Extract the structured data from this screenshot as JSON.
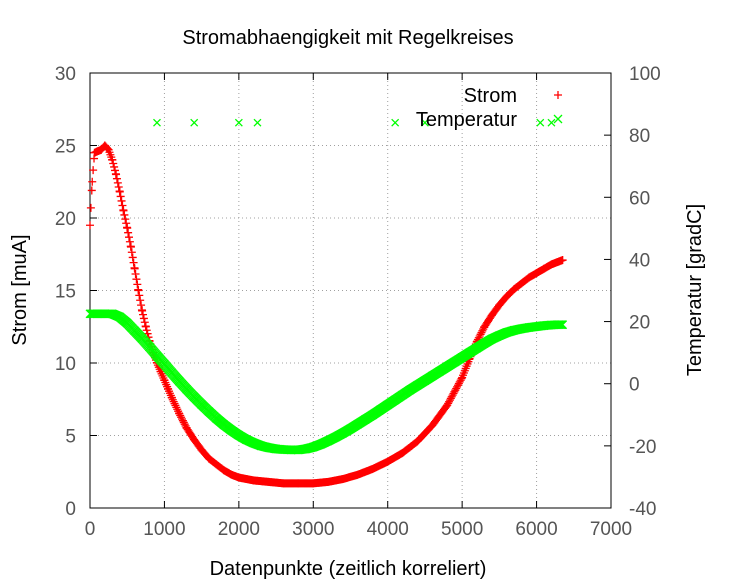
{
  "chart_data": {
    "type": "scatter",
    "title": "Stromabhaengigkeit mit Regelkreises",
    "xlabel": "Datenpunkte (zeitlich korreliert)",
    "ylabel": "Strom [muA]",
    "y2label": "Temperatur [gradC]",
    "xlim": [
      0,
      7000
    ],
    "ylim": [
      0,
      30
    ],
    "y2lim": [
      -40,
      100
    ],
    "xticks": [
      "0",
      "1000",
      "2000",
      "3000",
      "4000",
      "5000",
      "6000",
      "7000"
    ],
    "yticks": [
      "0",
      "5",
      "10",
      "15",
      "20",
      "25",
      "30"
    ],
    "y2ticks": [
      "-40",
      "-20",
      "0",
      "20",
      "40",
      "60",
      "80",
      "100"
    ],
    "grid": true,
    "legend_position": "top-right",
    "series": [
      {
        "name": "Strom",
        "axis": "left",
        "marker": "plus",
        "color": "#ff0000",
        "x": [
          0,
          30,
          60,
          100,
          150,
          200,
          250,
          300,
          350,
          400,
          450,
          500,
          550,
          600,
          650,
          700,
          750,
          800,
          850,
          900,
          950,
          1000,
          1050,
          1100,
          1200,
          1300,
          1400,
          1500,
          1600,
          1700,
          1800,
          1900,
          2000,
          2100,
          2200,
          2400,
          2600,
          2800,
          3000,
          3200,
          3400,
          3600,
          3800,
          4000,
          4200,
          4400,
          4600,
          4800,
          5000,
          5100,
          5200,
          5300,
          5400,
          5500,
          5600,
          5700,
          5800,
          5900,
          6000,
          6100,
          6200,
          6300,
          6350
        ],
        "values": [
          19.5,
          22.5,
          24.5,
          24.6,
          24.7,
          25.0,
          24.7,
          24.0,
          23.0,
          21.8,
          20.5,
          19.3,
          18.0,
          16.5,
          15.0,
          13.6,
          12.5,
          11.5,
          10.7,
          10.0,
          9.4,
          8.8,
          8.2,
          7.6,
          6.5,
          5.5,
          4.7,
          4.0,
          3.4,
          3.0,
          2.6,
          2.3,
          2.1,
          2.0,
          1.9,
          1.8,
          1.7,
          1.7,
          1.7,
          1.8,
          2.0,
          2.3,
          2.7,
          3.2,
          3.8,
          4.6,
          5.7,
          7.1,
          9.0,
          10.3,
          11.5,
          12.5,
          13.3,
          14.0,
          14.6,
          15.1,
          15.5,
          15.9,
          16.2,
          16.5,
          16.8,
          17.0,
          17.1
        ]
      },
      {
        "name": "Temperatur",
        "axis": "right",
        "marker": "cross",
        "color": "#00ff00",
        "x": [
          0,
          100,
          200,
          300,
          400,
          500,
          600,
          700,
          800,
          900,
          1000,
          1100,
          1200,
          1300,
          1400,
          1500,
          1600,
          1700,
          1800,
          1900,
          2000,
          2100,
          2200,
          2300,
          2400,
          2500,
          2600,
          2700,
          2800,
          2900,
          3000,
          3100,
          3200,
          3300,
          3400,
          3500,
          3600,
          3700,
          3800,
          3900,
          4000,
          4100,
          4200,
          4300,
          4400,
          4500,
          4600,
          4700,
          4800,
          4900,
          5000,
          5100,
          5200,
          5300,
          5400,
          5500,
          5600,
          5700,
          5800,
          5900,
          6000,
          6100,
          6200,
          6300,
          6350
        ],
        "values": [
          22.5,
          22.5,
          22.5,
          22.5,
          21.5,
          19.5,
          17.0,
          14.5,
          11.8,
          9.0,
          6.3,
          3.5,
          0.8,
          -1.8,
          -4.3,
          -6.7,
          -9.0,
          -11.2,
          -13.2,
          -15.0,
          -16.6,
          -18.0,
          -19.1,
          -20.0,
          -20.6,
          -21.0,
          -21.2,
          -21.3,
          -21.3,
          -21.0,
          -20.4,
          -19.5,
          -18.4,
          -17.2,
          -15.9,
          -14.5,
          -13.0,
          -11.5,
          -10.0,
          -8.4,
          -6.8,
          -5.2,
          -3.6,
          -2.0,
          -0.5,
          1.0,
          2.5,
          4.0,
          5.5,
          7.0,
          8.5,
          10.0,
          11.5,
          13.0,
          14.4,
          15.5,
          16.5,
          17.2,
          17.7,
          18.1,
          18.4,
          18.7,
          18.9,
          19.0,
          19.0
        ],
        "outliers": {
          "x": [
            900,
            1400,
            2000,
            2250,
            4100,
            4500,
            6050,
            6200
          ],
          "values": [
            84,
            84,
            84,
            84,
            84,
            84,
            84,
            84
          ]
        }
      }
    ]
  }
}
